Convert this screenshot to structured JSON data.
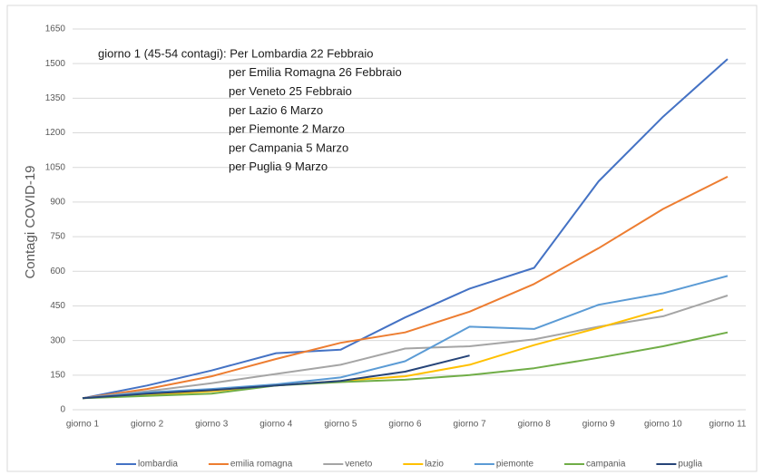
{
  "chart_data": {
    "type": "line",
    "y_label": "Contagi COVID-19",
    "annotation": [
      "giorno 1 (45-54 contagi): Per Lombardia 22 Febbraio",
      "per Emilia Romagna 26 Febbraio",
      "per Veneto 25 Febbraio",
      "per Lazio 6 Marzo",
      "per Piemonte 2 Marzo",
      "per Campania 5 Marzo",
      "per Puglia 9 Marzo"
    ],
    "categories": [
      "giorno 1",
      "giorno 2",
      "giorno 3",
      "giorno 4",
      "giorno 5",
      "giorno 6",
      "giorno 7",
      "giorno 8",
      "giorno 9",
      "giorno 10",
      "giorno 11"
    ],
    "series": [
      {
        "name": "lombardia",
        "color": "#4472c4",
        "values": [
          50,
          105,
          170,
          245,
          260,
          400,
          525,
          615,
          990,
          1270,
          1520
        ]
      },
      {
        "name": "emilia romagna",
        "color": "#ed7d31",
        "values": [
          50,
          90,
          145,
          220,
          290,
          335,
          425,
          545,
          700,
          870,
          1010
        ]
      },
      {
        "name": "veneto",
        "color": "#a5a5a5",
        "values": [
          50,
          80,
          115,
          155,
          195,
          265,
          275,
          305,
          360,
          405,
          495
        ]
      },
      {
        "name": "lazio",
        "color": "#ffc000",
        "values": [
          50,
          65,
          80,
          105,
          125,
          145,
          195,
          280,
          355,
          435,
          null
        ]
      },
      {
        "name": "piemonte",
        "color": "#5b9bd5",
        "values": [
          50,
          75,
          90,
          110,
          140,
          210,
          360,
          350,
          455,
          505,
          580
        ]
      },
      {
        "name": "campania",
        "color": "#70ad47",
        "values": [
          50,
          60,
          70,
          105,
          120,
          130,
          150,
          180,
          225,
          275,
          335
        ]
      },
      {
        "name": "puglia",
        "color": "#264478",
        "values": [
          50,
          70,
          85,
          105,
          125,
          165,
          235,
          null,
          null,
          null,
          null
        ]
      }
    ],
    "ylim": [
      0,
      1650
    ],
    "yticks": [
      0,
      150,
      300,
      450,
      600,
      750,
      900,
      1050,
      1200,
      1350,
      1500,
      1650
    ],
    "grid": true,
    "legend": "bottom"
  }
}
